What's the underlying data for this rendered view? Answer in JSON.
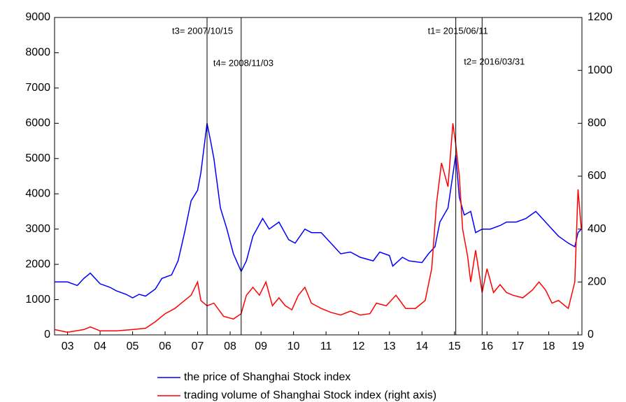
{
  "chart_data": {
    "type": "line",
    "ylim": [
      0,
      9000
    ],
    "yticks": [
      0,
      1000,
      2000,
      3000,
      4000,
      5000,
      6000,
      7000,
      8000,
      9000
    ],
    "y2lim": [
      0,
      1200
    ],
    "y2ticks": [
      0,
      200,
      400,
      600,
      800,
      1000,
      1200
    ],
    "xlim": [
      3.1,
      19.32
    ],
    "xticks": [
      {
        "value": 3.5,
        "label": "03"
      },
      {
        "value": 4.5,
        "label": "04"
      },
      {
        "value": 5.5,
        "label": "05"
      },
      {
        "value": 6.5,
        "label": "06"
      },
      {
        "value": 7.5,
        "label": "07"
      },
      {
        "value": 8.5,
        "label": "08"
      },
      {
        "value": 9.45,
        "label": "09"
      },
      {
        "value": 10.45,
        "label": "10"
      },
      {
        "value": 11.45,
        "label": "11"
      },
      {
        "value": 12.45,
        "label": "12"
      },
      {
        "value": 13.4,
        "label": "13"
      },
      {
        "value": 14.4,
        "label": "14"
      },
      {
        "value": 15.4,
        "label": "15"
      },
      {
        "value": 16.4,
        "label": "16"
      },
      {
        "value": 17.35,
        "label": "17"
      },
      {
        "value": 18.3,
        "label": "18"
      },
      {
        "value": 19.2,
        "label": "19"
      }
    ],
    "series": [
      {
        "name": "the price of Shanghai Stock index",
        "color": "#0000ff",
        "x": [
          3.1,
          3.5,
          3.8,
          4.0,
          4.2,
          4.5,
          4.8,
          5.0,
          5.3,
          5.5,
          5.7,
          5.9,
          6.2,
          6.4,
          6.7,
          6.9,
          7.1,
          7.3,
          7.5,
          7.6,
          7.79,
          7.9,
          8.0,
          8.2,
          8.4,
          8.6,
          8.84,
          9.0,
          9.2,
          9.5,
          9.7,
          10.0,
          10.3,
          10.5,
          10.8,
          11.0,
          11.3,
          11.6,
          11.9,
          12.2,
          12.5,
          12.9,
          13.1,
          13.4,
          13.5,
          13.8,
          14.0,
          14.4,
          14.6,
          14.8,
          14.95,
          15.2,
          15.44,
          15.55,
          15.7,
          15.9,
          16.05,
          16.25,
          16.5,
          16.8,
          17.0,
          17.3,
          17.6,
          17.9,
          18.1,
          18.4,
          18.6,
          18.9,
          19.1,
          19.2,
          19.3
        ],
        "values": [
          1500,
          1500,
          1400,
          1600,
          1750,
          1450,
          1350,
          1250,
          1150,
          1050,
          1150,
          1100,
          1300,
          1600,
          1700,
          2100,
          2900,
          3800,
          4100,
          4600,
          6000,
          5500,
          5000,
          3600,
          3000,
          2300,
          1800,
          2100,
          2800,
          3300,
          3000,
          3200,
          2700,
          2600,
          3000,
          2900,
          2900,
          2600,
          2300,
          2350,
          2200,
          2100,
          2350,
          2250,
          1950,
          2200,
          2100,
          2050,
          2300,
          2500,
          3200,
          3600,
          5100,
          3900,
          3400,
          3500,
          2900,
          3000,
          3000,
          3100,
          3200,
          3200,
          3300,
          3500,
          3300,
          3000,
          2800,
          2600,
          2500,
          2900,
          3000
        ]
      },
      {
        "name": "trading volume of Shanghai Stock index (right axis)",
        "color": "#ff0000",
        "axis": "y2",
        "x": [
          3.1,
          3.5,
          4.0,
          4.2,
          4.5,
          5.0,
          5.5,
          5.9,
          6.2,
          6.5,
          6.8,
          7.0,
          7.3,
          7.5,
          7.6,
          7.79,
          8.0,
          8.3,
          8.6,
          8.84,
          9.0,
          9.2,
          9.4,
          9.6,
          9.8,
          10.0,
          10.2,
          10.4,
          10.6,
          10.8,
          11.0,
          11.3,
          11.6,
          11.9,
          12.2,
          12.5,
          12.8,
          13.0,
          13.3,
          13.6,
          13.9,
          14.2,
          14.5,
          14.7,
          14.85,
          15.0,
          15.2,
          15.35,
          15.44,
          15.55,
          15.65,
          15.8,
          15.9,
          16.05,
          16.25,
          16.4,
          16.6,
          16.8,
          17.0,
          17.2,
          17.5,
          17.8,
          18.0,
          18.2,
          18.4,
          18.6,
          18.9,
          19.1,
          19.2,
          19.3
        ],
        "values": [
          20,
          10,
          20,
          30,
          15,
          15,
          20,
          25,
          50,
          80,
          100,
          120,
          150,
          200,
          130,
          110,
          120,
          70,
          60,
          80,
          150,
          180,
          150,
          200,
          110,
          140,
          110,
          95,
          150,
          180,
          120,
          100,
          85,
          75,
          90,
          75,
          80,
          120,
          110,
          150,
          100,
          100,
          130,
          250,
          500,
          650,
          560,
          800,
          720,
          600,
          400,
          300,
          200,
          320,
          160,
          250,
          160,
          190,
          160,
          150,
          140,
          170,
          200,
          170,
          120,
          130,
          100,
          200,
          550,
          400
        ]
      }
    ],
    "annotations": [
      {
        "label": "t3= 2007/10/15",
        "x": 7.79
      },
      {
        "label": "t4= 2008/11/03",
        "x": 8.84
      },
      {
        "label": "t1= 2015/06/11",
        "x": 15.44
      },
      {
        "label": "t2= 2016/03/31",
        "x": 16.25
      }
    ],
    "legend": "bottom"
  }
}
